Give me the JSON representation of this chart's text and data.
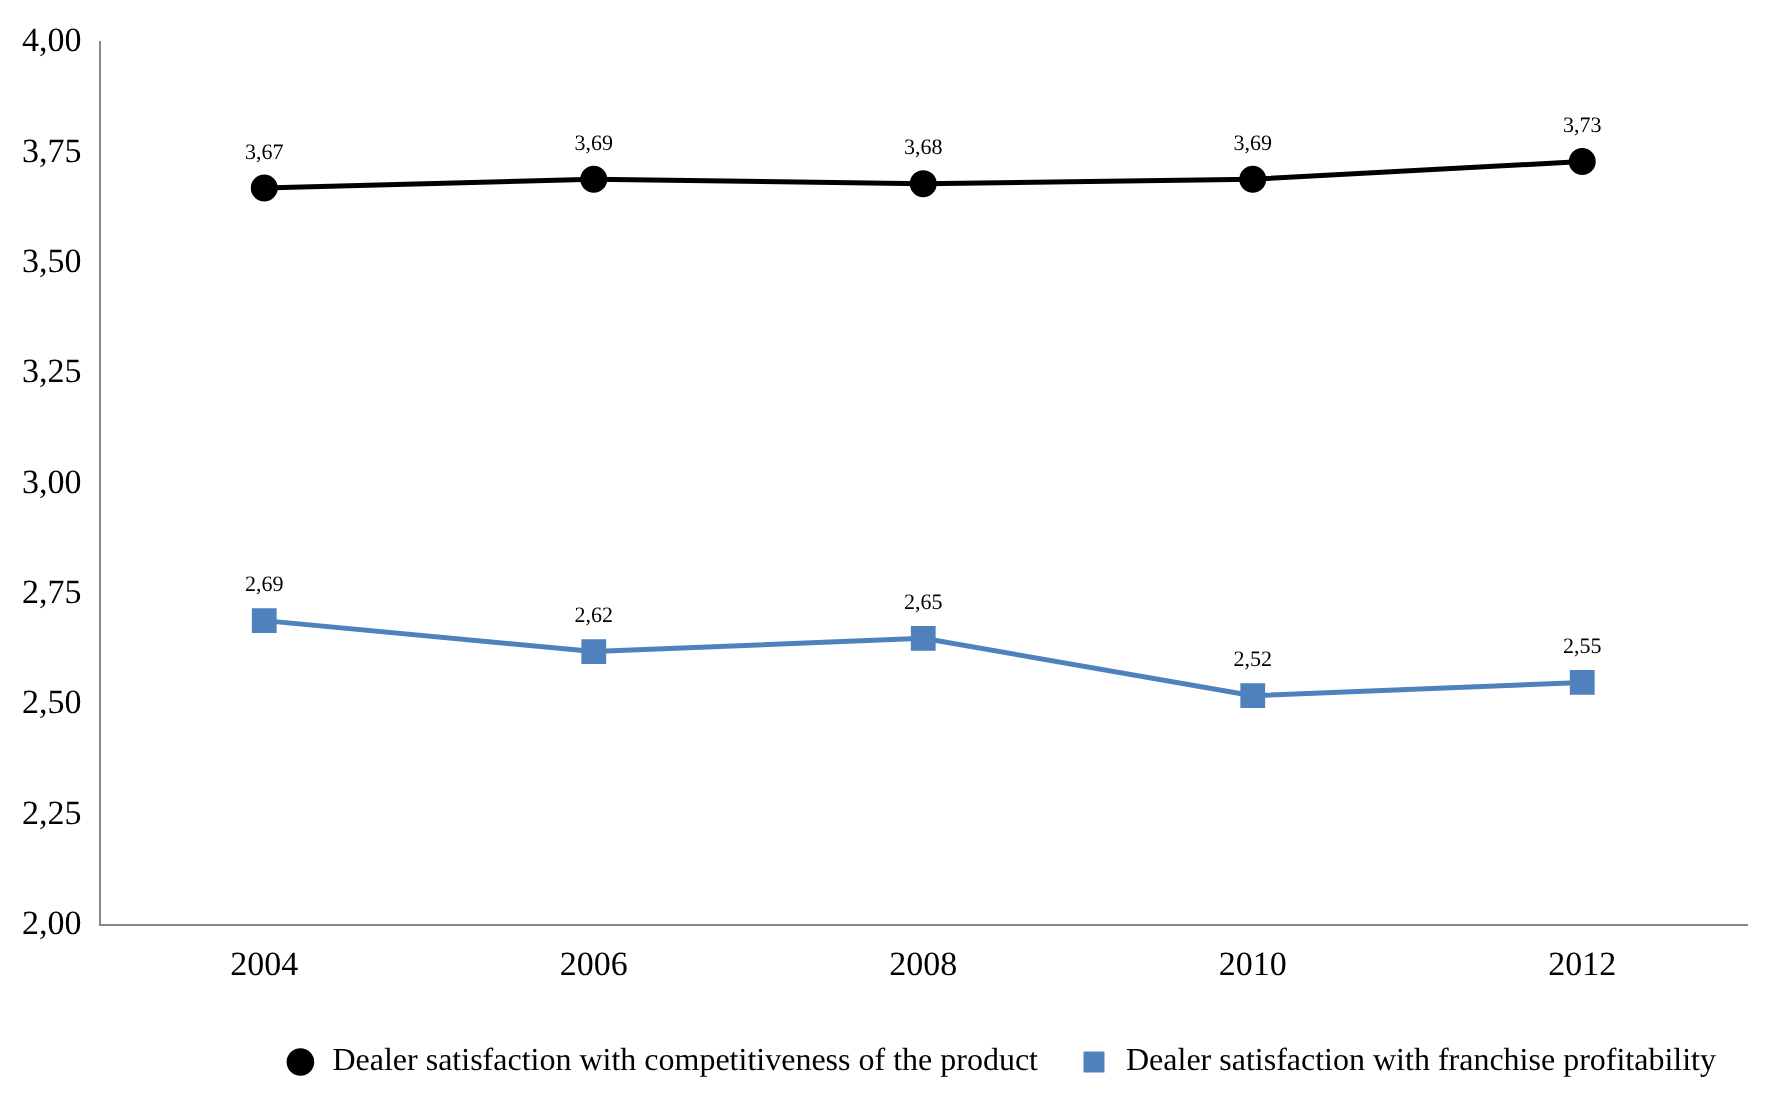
{
  "chart_data": {
    "type": "line",
    "categories": [
      "2004",
      "2006",
      "2008",
      "2010",
      "2012"
    ],
    "series": [
      {
        "name": "Dealer satisfaction with competitiveness of the product",
        "color": "#000000",
        "marker": "circle",
        "values": [
          3.67,
          3.69,
          3.68,
          3.69,
          3.73
        ],
        "value_labels": [
          "3,67",
          "3,69",
          "3,68",
          "3,69",
          "3,73"
        ]
      },
      {
        "name": "Dealer satisfaction with franchise profitability",
        "color": "#4f81bd",
        "marker": "square",
        "values": [
          2.69,
          2.62,
          2.65,
          2.52,
          2.55
        ],
        "value_labels": [
          "2,69",
          "2,62",
          "2,65",
          "2,52",
          "2,55"
        ]
      }
    ],
    "ylim": [
      2,
      4
    ],
    "yticks": [
      {
        "value": 2,
        "label": "2,00"
      },
      {
        "value": 2.25,
        "label": "2,25"
      },
      {
        "value": 2.5,
        "label": "2,50"
      },
      {
        "value": 2.75,
        "label": "2,75"
      },
      {
        "value": 3,
        "label": "3,00"
      },
      {
        "value": 3.25,
        "label": "3,25"
      },
      {
        "value": 3.5,
        "label": "3,50"
      },
      {
        "value": 3.75,
        "label": "3,75"
      },
      {
        "value": 4,
        "label": "4,00"
      }
    ],
    "grid": false,
    "legend": "bottom right",
    "line_style": "solid"
  }
}
